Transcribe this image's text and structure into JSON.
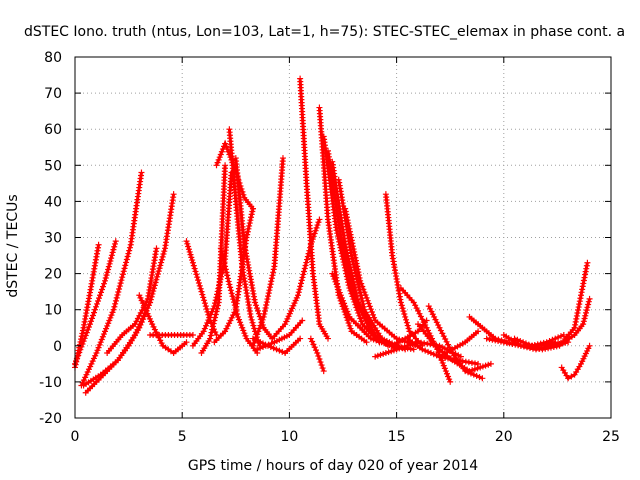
{
  "chart_data": {
    "type": "scatter",
    "title": "dSTEC Iono. truth (ntus, Lon=103, Lat=1, h=75): STEC-STEC_elemax in phase cont. a",
    "xlabel": "GPS time / hours of day 020 of year 2014",
    "ylabel": "dSTEC  / TECUs",
    "xlim": [
      0,
      25
    ],
    "ylim": [
      -20,
      80
    ],
    "x_ticks": [
      0,
      5,
      10,
      15,
      20,
      25
    ],
    "y_ticks": [
      -20,
      -10,
      0,
      10,
      20,
      30,
      40,
      50,
      60,
      70,
      80
    ],
    "x_tick_labels": [
      "0",
      "5",
      "10",
      "15",
      "20",
      "25"
    ],
    "y_tick_labels": [
      "-20",
      "-10",
      "0",
      "10",
      "20",
      "30",
      "40",
      "50",
      "60",
      "70",
      "80"
    ],
    "grid": true,
    "marker": "plus",
    "color": "#ff0000",
    "series": [
      {
        "x": [
          0.0,
          0.4,
          0.8,
          1.1
        ],
        "y": [
          -6,
          5,
          18,
          28
        ]
      },
      {
        "x": [
          0.0,
          0.7,
          1.4,
          1.9
        ],
        "y": [
          -5,
          6,
          18,
          29
        ]
      },
      {
        "x": [
          0.3,
          1.0,
          1.8,
          2.6,
          3.1
        ],
        "y": [
          -11,
          -2,
          10,
          28,
          48
        ]
      },
      {
        "x": [
          0.5,
          1.0,
          1.5,
          2.0,
          2.5,
          3.0,
          3.5
        ],
        "y": [
          -13,
          -10,
          -7,
          -4,
          0,
          5,
          12
        ]
      },
      {
        "x": [
          0.4,
          1.2,
          2.0,
          2.8,
          3.5,
          4.2,
          4.6
        ],
        "y": [
          -11,
          -8,
          -4,
          3,
          12,
          27,
          42
        ]
      },
      {
        "x": [
          1.5,
          2.2,
          2.8,
          3.4,
          3.8
        ],
        "y": [
          -2,
          3,
          6,
          13,
          27
        ]
      },
      {
        "x": [
          3.0,
          3.6,
          4.1,
          4.6,
          5.2
        ],
        "y": [
          14,
          6,
          0,
          -2,
          1
        ]
      },
      {
        "x": [
          3.5,
          4.5,
          5.5
        ],
        "y": [
          3,
          3,
          3
        ]
      },
      {
        "x": [
          5.2,
          5.5,
          5.9,
          6.3,
          6.6
        ],
        "y": [
          29,
          23,
          15,
          7,
          3
        ]
      },
      {
        "x": [
          5.5,
          6.0,
          6.5,
          7.0,
          7.3
        ],
        "y": [
          0,
          4,
          11,
          24,
          48
        ]
      },
      {
        "x": [
          5.9,
          6.3,
          6.7,
          7.0
        ],
        "y": [
          -2,
          2,
          12,
          50
        ]
      },
      {
        "x": [
          6.6,
          7.0,
          7.4,
          7.9,
          8.3
        ],
        "y": [
          50,
          56,
          50,
          41,
          38
        ]
      },
      {
        "x": [
          6.8,
          7.2,
          7.6,
          8.0,
          8.5
        ],
        "y": [
          27,
          17,
          8,
          2,
          -2
        ]
      },
      {
        "x": [
          7.2,
          7.5,
          7.8,
          8.2,
          8.6
        ],
        "y": [
          60,
          40,
          22,
          8,
          0
        ]
      },
      {
        "x": [
          7.5,
          7.9,
          8.4,
          8.8,
          9.2
        ],
        "y": [
          52,
          28,
          12,
          5,
          2
        ]
      },
      {
        "x": [
          6.5,
          7.0,
          7.5,
          8.0,
          8.3
        ],
        "y": [
          1,
          4,
          10,
          30,
          38
        ]
      },
      {
        "x": [
          8.3,
          8.8,
          9.3,
          9.7
        ],
        "y": [
          0,
          8,
          22,
          52
        ]
      },
      {
        "x": [
          8.5,
          9.3,
          10.0,
          10.6
        ],
        "y": [
          -1,
          1,
          3,
          7
        ]
      },
      {
        "x": [
          8.3,
          9.0,
          9.8,
          10.5
        ],
        "y": [
          2,
          0,
          -2,
          2
        ]
      },
      {
        "x": [
          10.5,
          10.8,
          11.1,
          11.4,
          11.8
        ],
        "y": [
          74,
          45,
          20,
          6,
          2
        ]
      },
      {
        "x": [
          9.2,
          9.8,
          10.4,
          11.0,
          11.4
        ],
        "y": [
          2,
          6,
          14,
          28,
          35
        ]
      },
      {
        "x": [
          11.4,
          11.8,
          12.3,
          12.9,
          13.6
        ],
        "y": [
          66,
          35,
          14,
          4,
          1
        ]
      },
      {
        "x": [
          11.6,
          12.2,
          12.8,
          13.4,
          14.2
        ],
        "y": [
          58,
          32,
          16,
          6,
          1
        ]
      },
      {
        "x": [
          11.8,
          12.4,
          13.0,
          13.8,
          14.6
        ],
        "y": [
          54,
          30,
          14,
          4,
          0
        ]
      },
      {
        "x": [
          12.0,
          12.6,
          13.2,
          14.0,
          15.0
        ],
        "y": [
          51,
          28,
          12,
          3,
          -1
        ]
      },
      {
        "x": [
          12.3,
          12.9,
          13.5,
          14.3,
          15.4
        ],
        "y": [
          46,
          25,
          10,
          2,
          -1
        ]
      },
      {
        "x": [
          12.6,
          13.3,
          14.0,
          15.0,
          16.0
        ],
        "y": [
          38,
          18,
          7,
          2,
          0
        ]
      },
      {
        "x": [
          11.0,
          11.3,
          11.6
        ],
        "y": [
          2,
          -2,
          -7
        ]
      },
      {
        "x": [
          12.0,
          12.8,
          13.8,
          14.8,
          15.8
        ],
        "y": [
          20,
          8,
          2,
          0,
          -1
        ]
      },
      {
        "x": [
          14.5,
          14.8,
          15.2,
          15.6,
          16.2
        ],
        "y": [
          42,
          25,
          12,
          4,
          0
        ]
      },
      {
        "x": [
          15.2,
          15.8,
          16.4,
          16.9,
          17.5
        ],
        "y": [
          16,
          12,
          5,
          -1,
          -10
        ]
      },
      {
        "x": [
          14.0,
          15.0,
          16.0,
          17.0,
          18.0
        ],
        "y": [
          -3,
          -1,
          1,
          0,
          -3
        ]
      },
      {
        "x": [
          15.5,
          16.2,
          17.0,
          17.8,
          18.8
        ],
        "y": [
          2,
          -1,
          -3,
          -4,
          -5
        ]
      },
      {
        "x": [
          16.0,
          16.8,
          17.6,
          18.4,
          19.4
        ],
        "y": [
          6,
          0,
          -4,
          -7,
          -5
        ]
      },
      {
        "x": [
          16.5,
          17.0,
          17.6,
          18.2,
          19.0
        ],
        "y": [
          11,
          5,
          -2,
          -7,
          -9
        ]
      },
      {
        "x": [
          14.8,
          15.4,
          16.0,
          16.4
        ],
        "y": [
          0,
          2,
          4,
          7
        ]
      },
      {
        "x": [
          17.0,
          17.6,
          18.2,
          18.8
        ],
        "y": [
          -3,
          -1,
          1,
          4
        ]
      },
      {
        "x": [
          18.4,
          19.0,
          19.6,
          20.2
        ],
        "y": [
          8,
          5,
          2,
          1
        ]
      },
      {
        "x": [
          19.2,
          20.0,
          20.8,
          21.6,
          22.4
        ],
        "y": [
          2,
          1,
          0,
          0,
          1
        ]
      },
      {
        "x": [
          20.0,
          20.8,
          21.5,
          22.2,
          23.0
        ],
        "y": [
          3,
          0,
          -1,
          0,
          1
        ]
      },
      {
        "x": [
          20.5,
          21.3,
          22.0,
          22.8
        ],
        "y": [
          2,
          0,
          1,
          3
        ]
      },
      {
        "x": [
          21.0,
          21.8,
          22.6,
          23.3,
          23.9
        ],
        "y": [
          0,
          -1,
          0,
          5,
          23
        ]
      },
      {
        "x": [
          22.0,
          22.8,
          23.3,
          23.7,
          24.0
        ],
        "y": [
          0,
          1,
          3,
          6,
          13
        ]
      },
      {
        "x": [
          22.7,
          23.0,
          23.3,
          23.6,
          24.0
        ],
        "y": [
          -6,
          -9,
          -8,
          -5,
          0
        ]
      }
    ]
  }
}
